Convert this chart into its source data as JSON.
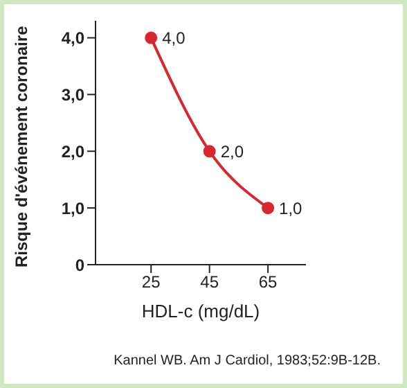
{
  "chart_data": {
    "type": "line",
    "xlabel": "HDL-c (mg/dL)",
    "ylabel": "Risque d'événement coronaire",
    "x": [
      25,
      45,
      65
    ],
    "series": [
      {
        "color": "#d7282f",
        "values": [
          4,
          2,
          1
        ],
        "value_labels": [
          "4,0",
          "2,0",
          "1,0"
        ]
      }
    ],
    "xlim": [
      6,
      78
    ],
    "xticks": [
      25,
      45,
      65
    ],
    "ylim": [
      0,
      4.3
    ],
    "yticks": [
      0,
      {
        "value": 1,
        "label": "1,0"
      },
      {
        "value": 2,
        "label": "2,0"
      },
      {
        "value": 3,
        "label": "3,0"
      },
      {
        "value": 4,
        "label": "4,0"
      }
    ],
    "grid": false,
    "legend": false,
    "marker": "circle",
    "line_style": "solid",
    "annotations": [
      "Kannel WB. Am J Cardiol, 1983;52:9B-12B."
    ]
  }
}
